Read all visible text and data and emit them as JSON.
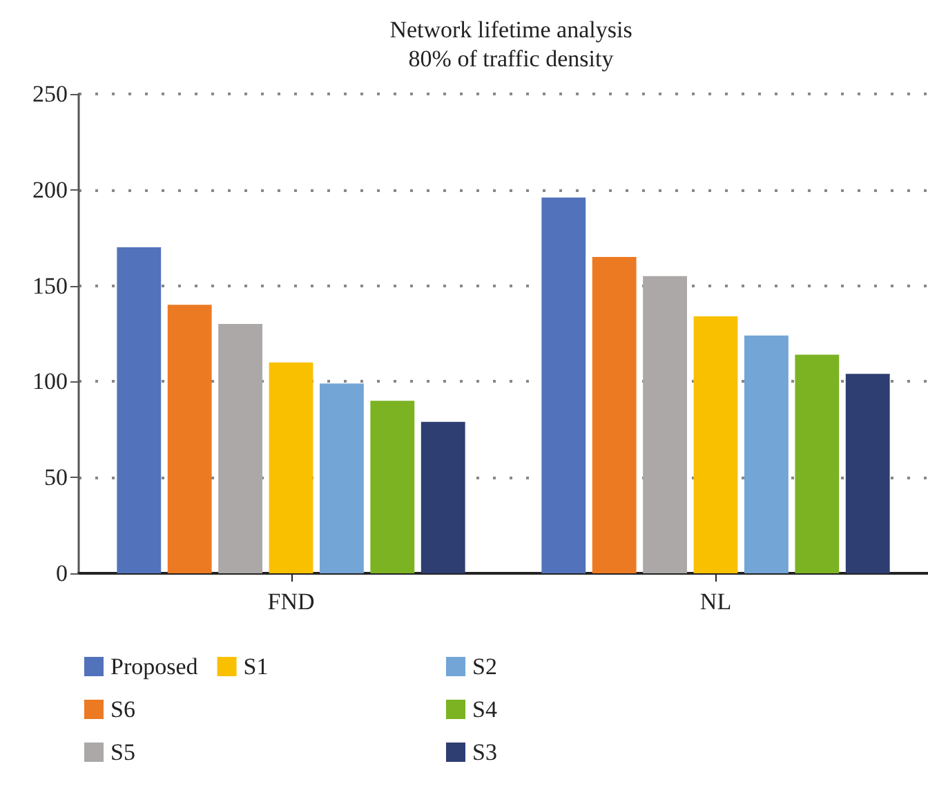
{
  "chart_data": {
    "type": "bar",
    "title": "Network lifetime analysis",
    "subtitle": "80% of traffic density",
    "categories": [
      "FND",
      "NL"
    ],
    "series": [
      {
        "name": "Proposed",
        "color": "#5273bb",
        "values": [
          170,
          196
        ]
      },
      {
        "name": "S6",
        "color": "#ec7a23",
        "values": [
          140,
          165
        ]
      },
      {
        "name": "S5",
        "color": "#aca8a7",
        "values": [
          130,
          155
        ]
      },
      {
        "name": "S1",
        "color": "#f9c000",
        "values": [
          110,
          134
        ]
      },
      {
        "name": "S2",
        "color": "#73a5d6",
        "values": [
          99,
          124
        ]
      },
      {
        "name": "S4",
        "color": "#7bb323",
        "values": [
          90,
          114
        ]
      },
      {
        "name": "S3",
        "color": "#2e3e72",
        "values": [
          79,
          104
        ]
      }
    ],
    "ylim": [
      0,
      250
    ],
    "yticks": [
      0,
      50,
      100,
      150,
      200,
      250
    ],
    "grid": "y",
    "legend": "bottom left"
  }
}
